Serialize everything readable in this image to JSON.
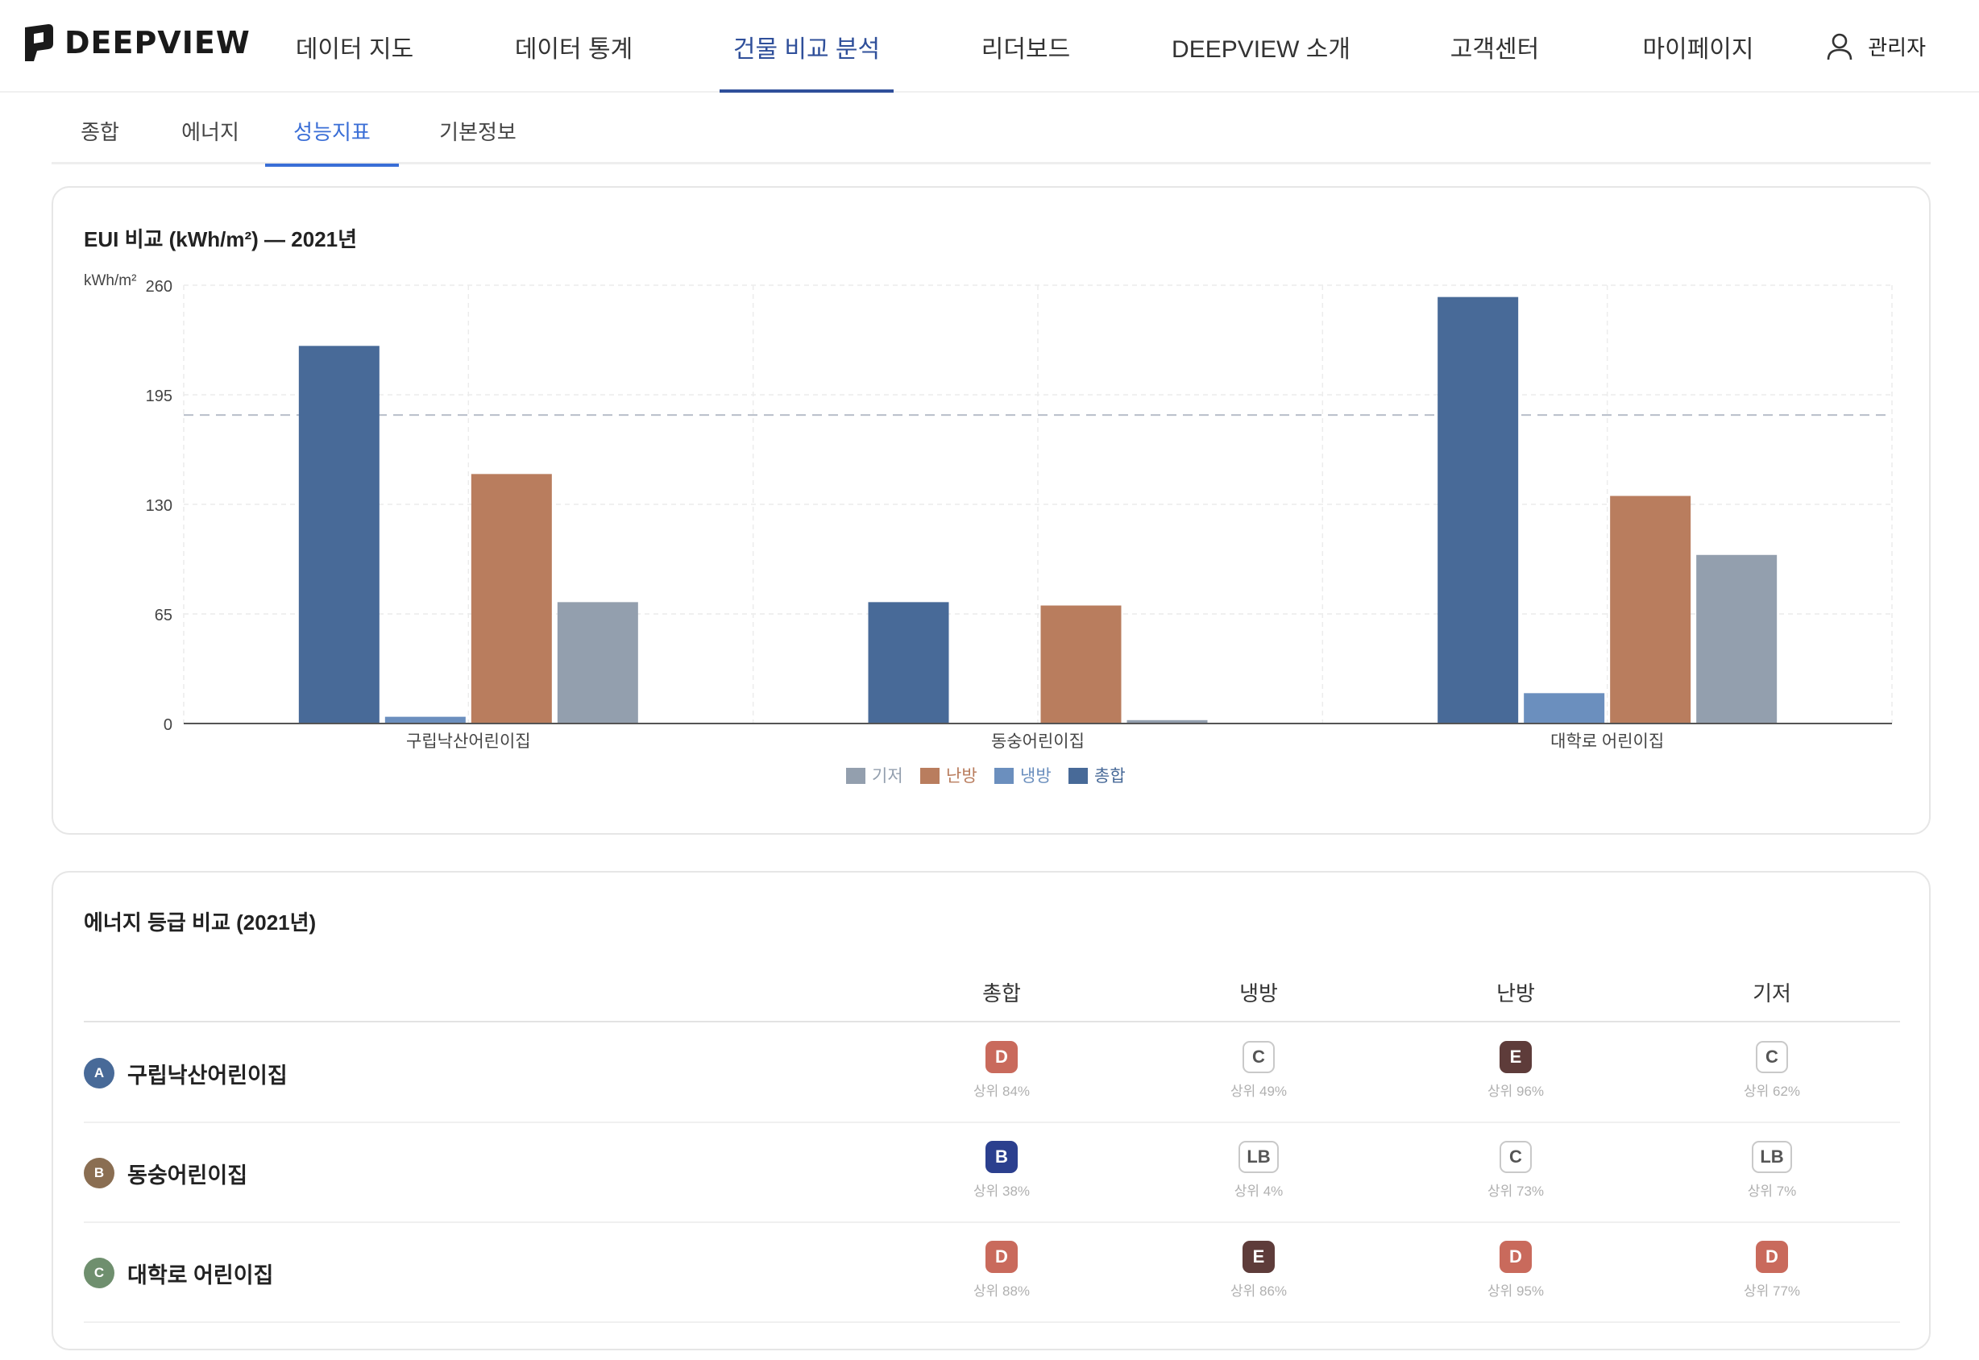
{
  "header": {
    "brand": "DEEPVIEW",
    "nav": [
      {
        "label": "데이터 지도",
        "active": false
      },
      {
        "label": "데이터 통계",
        "active": false
      },
      {
        "label": "건물 비교 분석",
        "active": true
      },
      {
        "label": "리더보드",
        "active": false
      },
      {
        "label": "DEEPVIEW 소개",
        "active": false
      },
      {
        "label": "고객센터",
        "active": false
      },
      {
        "label": "마이페이지",
        "active": false
      }
    ],
    "user_label": "관리자"
  },
  "subtabs": [
    {
      "label": "종합",
      "active": false
    },
    {
      "label": "에너지",
      "active": false
    },
    {
      "label": "성능지표",
      "active": true
    },
    {
      "label": "기본정보",
      "active": false
    }
  ],
  "chart_card": {
    "title": "EUI 비교 (kWh/m²) — 2021년"
  },
  "chart_data": {
    "type": "bar",
    "ylabel": "kWh/m²",
    "ylim": [
      0,
      260
    ],
    "yticks": [
      0,
      65,
      130,
      195,
      260
    ],
    "reference_line": 183,
    "categories": [
      "구립낙산어린이집",
      "동숭어린이집",
      "대학로 어린이집"
    ],
    "series": [
      {
        "name": "총합",
        "color": "#486a98",
        "values": [
          224,
          72,
          253
        ]
      },
      {
        "name": "냉방",
        "color": "#6b8fbe",
        "values": [
          4,
          0,
          18
        ]
      },
      {
        "name": "난방",
        "color": "#b97d5e",
        "values": [
          148,
          70,
          135
        ]
      },
      {
        "name": "기저",
        "color": "#939fae",
        "values": [
          72,
          2,
          100
        ]
      }
    ],
    "legend": [
      {
        "name": "기저",
        "color": "#939fae"
      },
      {
        "name": "난방",
        "color": "#b97d5e"
      },
      {
        "name": "냉방",
        "color": "#6b8fbe"
      },
      {
        "name": "총합",
        "color": "#486a98"
      }
    ],
    "legend_position": "bottom-center"
  },
  "grade_card": {
    "title": "에너지 등급 비교 (2021년)",
    "columns": [
      "총합",
      "냉방",
      "난방",
      "기저"
    ],
    "rows": [
      {
        "letter": "A",
        "circle_color": "#486a98",
        "name": "구립낙산어린이집",
        "cells": [
          {
            "grade": "D",
            "style": "solid",
            "color": "#c96a5c",
            "rank": "상위 84%"
          },
          {
            "grade": "C",
            "style": "outline",
            "color": "",
            "rank": "상위 49%"
          },
          {
            "grade": "E",
            "style": "solid",
            "color": "#5e3c3a",
            "rank": "상위 96%"
          },
          {
            "grade": "C",
            "style": "outline",
            "color": "",
            "rank": "상위 62%"
          }
        ]
      },
      {
        "letter": "B",
        "circle_color": "#8a6e52",
        "name": "동숭어린이집",
        "cells": [
          {
            "grade": "B",
            "style": "solid",
            "color": "#2b3f8e",
            "rank": "상위 38%"
          },
          {
            "grade": "LB",
            "style": "outline",
            "color": "",
            "rank": "상위 4%"
          },
          {
            "grade": "C",
            "style": "outline",
            "color": "",
            "rank": "상위 73%"
          },
          {
            "grade": "LB",
            "style": "outline",
            "color": "",
            "rank": "상위 7%"
          }
        ]
      },
      {
        "letter": "C",
        "circle_color": "#6f8f6e",
        "name": "대학로 어린이집",
        "cells": [
          {
            "grade": "D",
            "style": "solid",
            "color": "#c96a5c",
            "rank": "상위 88%"
          },
          {
            "grade": "E",
            "style": "solid",
            "color": "#5e3c3a",
            "rank": "상위 86%"
          },
          {
            "grade": "D",
            "style": "solid",
            "color": "#c96a5c",
            "rank": "상위 95%"
          },
          {
            "grade": "D",
            "style": "solid",
            "color": "#c96a5c",
            "rank": "상위 77%"
          }
        ]
      }
    ]
  }
}
